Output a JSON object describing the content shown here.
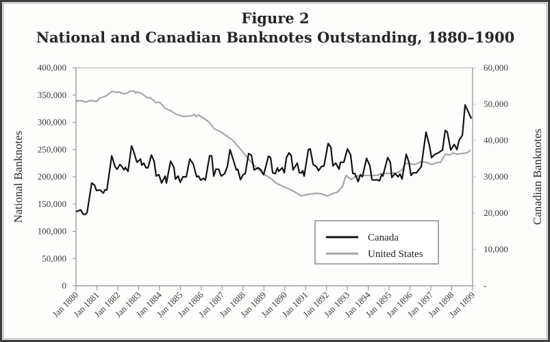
{
  "chart_data": {
    "type": "line",
    "title": "Figure 2",
    "subtitle": "National and Canadian Banknotes Outstanding, 1880–1900",
    "xlabel": "",
    "ylabel_left": "National Banknotes",
    "ylabel_right": "Canadian Banknotes",
    "x_unit": "decimal year",
    "xlim": [
      1880,
      1899
    ],
    "ylim_left": [
      0,
      400000
    ],
    "ylim_right": [
      0,
      60000
    ],
    "grid": false,
    "legend_position": "bottom-right",
    "x_ticks": [
      "Jan 1880",
      "Jan 1881",
      "Jan 1882",
      "Jan 1883",
      "Jan 1884",
      "Jan 1885",
      "Jan 1886",
      "Jan 1887",
      "Jan 1888",
      "Jan 1889",
      "Jan 1890",
      "Jan 1891",
      "Jan 1892",
      "Jan 1893",
      "Jan 1894",
      "Jan 1895",
      "Jan 1896",
      "Jan 1897",
      "Jan 1898",
      "Jan 1899"
    ],
    "y_ticks_left": [
      "0",
      "50,000",
      "100,000",
      "150,000",
      "200,000",
      "250,000",
      "300,000",
      "350,000",
      "400,000"
    ],
    "y_ticks_right": [
      "-",
      "10,000",
      "20,000",
      "30,000",
      "40,000",
      "50,000",
      "60,000"
    ],
    "series": [
      {
        "name": "Canada",
        "axis": "right",
        "color": "#111111",
        "x": [
          1880.0,
          1880.23,
          1880.33,
          1880.43,
          1880.53,
          1880.75,
          1880.89,
          1880.98,
          1881.15,
          1881.31,
          1881.38,
          1881.48,
          1881.71,
          1881.87,
          1881.97,
          1882.1,
          1882.2,
          1882.3,
          1882.36,
          1882.49,
          1882.66,
          1882.76,
          1882.92,
          1883.09,
          1883.15,
          1883.25,
          1883.35,
          1883.45,
          1883.61,
          1883.74,
          1883.84,
          1883.97,
          1884.1,
          1884.27,
          1884.33,
          1884.53,
          1884.69,
          1884.76,
          1884.89,
          1884.99,
          1885.12,
          1885.28,
          1885.45,
          1885.61,
          1885.78,
          1885.87,
          1885.97,
          1886.1,
          1886.2,
          1886.4,
          1886.5,
          1886.6,
          1886.7,
          1886.83,
          1886.96,
          1887.12,
          1887.25,
          1887.38,
          1887.58,
          1887.68,
          1887.75,
          1887.88,
          1888.01,
          1888.11,
          1888.27,
          1888.4,
          1888.53,
          1888.73,
          1888.86,
          1888.99,
          1889.22,
          1889.32,
          1889.42,
          1889.55,
          1889.65,
          1889.71,
          1889.88,
          1889.98,
          1890.08,
          1890.21,
          1890.31,
          1890.4,
          1890.6,
          1890.7,
          1890.8,
          1890.86,
          1890.93,
          1891.13,
          1891.22,
          1891.36,
          1891.52,
          1891.62,
          1891.75,
          1891.88,
          1892.08,
          1892.21,
          1892.31,
          1892.44,
          1892.6,
          1892.67,
          1892.83,
          1893.0,
          1893.16,
          1893.26,
          1893.36,
          1893.52,
          1893.62,
          1893.72,
          1893.92,
          1894.08,
          1894.18,
          1894.31,
          1894.41,
          1894.54,
          1894.64,
          1894.7,
          1894.93,
          1895.06,
          1895.13,
          1895.29,
          1895.43,
          1895.52,
          1895.62,
          1895.82,
          1895.95,
          1896.05,
          1896.15,
          1896.31,
          1896.54,
          1896.77,
          1896.93,
          1897.03,
          1897.2,
          1897.36,
          1897.56,
          1897.69,
          1897.79,
          1897.95,
          1898.12,
          1898.25,
          1898.35,
          1898.51,
          1898.64,
          1898.94
        ],
        "values": [
          20400,
          20900,
          19800,
          19600,
          20200,
          28300,
          27700,
          26200,
          26400,
          25500,
          26400,
          26400,
          35800,
          32800,
          32100,
          33400,
          32800,
          31900,
          32600,
          31500,
          38500,
          37000,
          34000,
          34900,
          33200,
          33800,
          32500,
          32500,
          36000,
          34300,
          30200,
          30600,
          28300,
          30200,
          28300,
          34300,
          32600,
          29400,
          30200,
          28500,
          30000,
          30000,
          34900,
          33600,
          30000,
          30200,
          29100,
          29600,
          29100,
          35800,
          35800,
          30200,
          32100,
          32100,
          30200,
          30900,
          32800,
          37500,
          33800,
          31900,
          32100,
          29200,
          30600,
          30900,
          36400,
          36000,
          31900,
          32500,
          31900,
          30600,
          35700,
          35300,
          31100,
          30900,
          32500,
          31500,
          32500,
          31100,
          35300,
          36600,
          35800,
          31900,
          33800,
          31100,
          31100,
          31700,
          30200,
          37500,
          37700,
          33400,
          32800,
          31700,
          32800,
          33000,
          39200,
          38100,
          33000,
          33800,
          32100,
          34000,
          34000,
          37700,
          36000,
          30900,
          30900,
          28700,
          30600,
          30000,
          35100,
          33000,
          29200,
          29100,
          29200,
          28900,
          30600,
          30200,
          35300,
          34000,
          29800,
          30900,
          30000,
          30800,
          29400,
          36200,
          34000,
          30400,
          31100,
          31100,
          32800,
          42300,
          38700,
          35300,
          36200,
          36600,
          37400,
          42800,
          42300,
          37400,
          38900,
          37500,
          40000,
          41500,
          49800,
          46000
        ]
      },
      {
        "name": "United States",
        "axis": "left",
        "color": "#a6a6a6",
        "x": [
          1880.0,
          1880.07,
          1880.3,
          1880.46,
          1880.62,
          1880.82,
          1880.98,
          1881.15,
          1881.44,
          1881.74,
          1881.94,
          1882.07,
          1882.26,
          1882.43,
          1882.59,
          1882.79,
          1882.86,
          1882.95,
          1883.12,
          1883.38,
          1883.58,
          1883.84,
          1884.0,
          1884.27,
          1884.56,
          1884.82,
          1885.15,
          1885.55,
          1885.68,
          1885.74,
          1885.87,
          1886.14,
          1886.37,
          1886.63,
          1886.92,
          1887.52,
          1887.94,
          1888.4,
          1888.93,
          1889.32,
          1889.58,
          1889.91,
          1890.37,
          1890.8,
          1891.03,
          1891.52,
          1891.78,
          1892.04,
          1892.34,
          1892.54,
          1892.77,
          1892.93,
          1893.19,
          1893.42,
          1893.75,
          1894.41,
          1894.64,
          1895.06,
          1895.39,
          1895.62,
          1895.79,
          1895.98,
          1896.21,
          1896.54,
          1896.8,
          1897.03,
          1897.3,
          1897.46,
          1897.69,
          1897.92,
          1898.08,
          1898.25,
          1898.51,
          1898.74,
          1898.9
        ],
        "values": [
          337000,
          339600,
          339600,
          337000,
          339600,
          339600,
          338400,
          344700,
          348400,
          357200,
          354700,
          356000,
          352200,
          353500,
          357200,
          357200,
          353500,
          356000,
          353500,
          345900,
          344700,
          335900,
          337100,
          325800,
          320800,
          314500,
          310700,
          312000,
          314500,
          310700,
          313200,
          306900,
          300600,
          288100,
          283000,
          266700,
          247800,
          226400,
          206300,
          197500,
          188700,
          182400,
          174800,
          164800,
          167300,
          169800,
          168600,
          164800,
          169800,
          172300,
          182400,
          202500,
          195000,
          201300,
          202500,
          202500,
          206300,
          206300,
          207600,
          212600,
          225200,
          223900,
          222600,
          227700,
          226400,
          222600,
          226400,
          226400,
          241500,
          240300,
          244000,
          241500,
          242800,
          244000,
          249100
        ]
      }
    ]
  }
}
